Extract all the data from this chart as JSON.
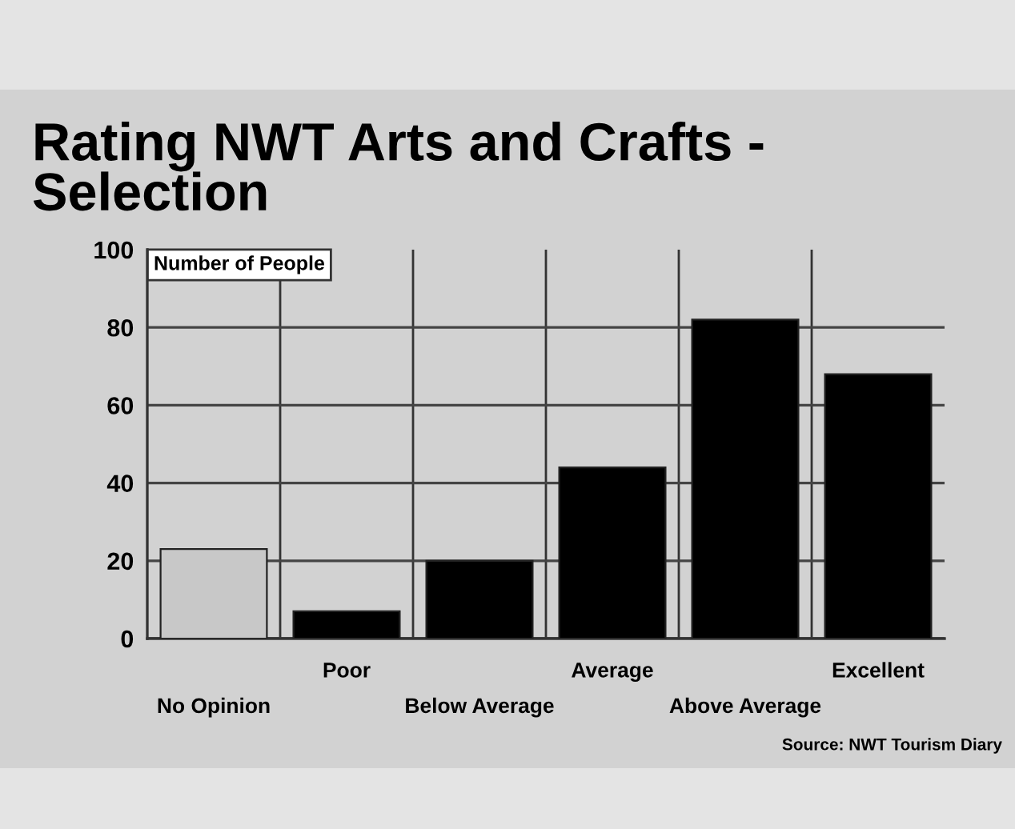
{
  "chart_data": {
    "type": "bar",
    "title": "Rating NWT Arts and Crafts - Selection",
    "ylabel": "Number of People",
    "categories": [
      "No Opinion",
      "Poor",
      "Below Average",
      "Average",
      "Above Average",
      "Excellent"
    ],
    "values": [
      23,
      7,
      20,
      44,
      82,
      68
    ],
    "colors": [
      "#c8c8c8",
      "#000000",
      "#000000",
      "#000000",
      "#000000",
      "#000000"
    ],
    "ylim": [
      0,
      100
    ],
    "yticks": [
      0,
      20,
      40,
      60,
      80,
      100
    ],
    "grid": true,
    "annotations": [
      "Source: NWT Tourism Diary"
    ]
  }
}
